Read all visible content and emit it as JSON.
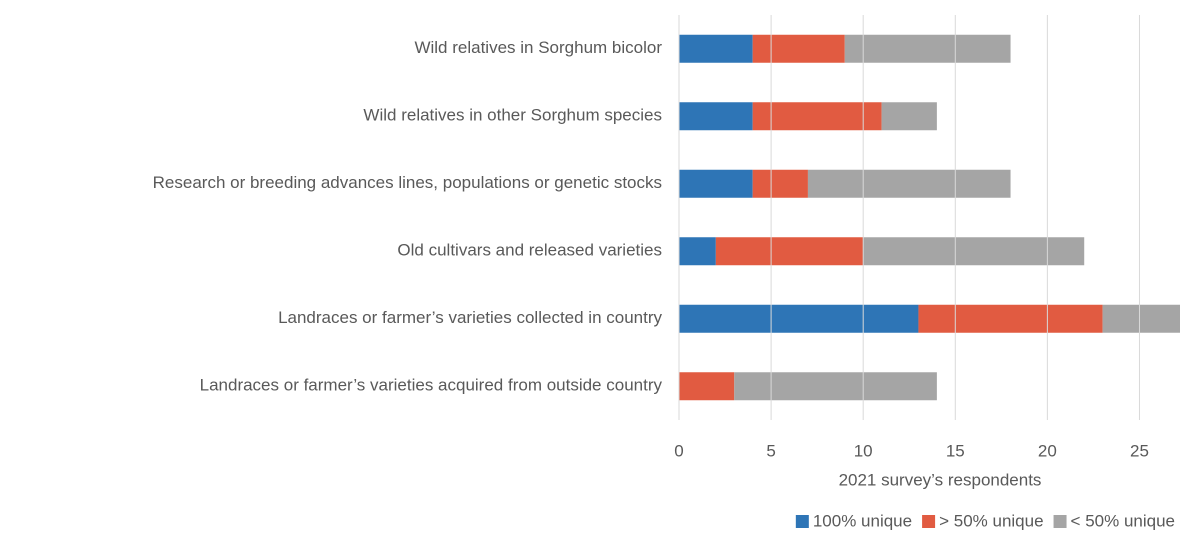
{
  "chart_data": {
    "type": "stacked-barh",
    "xlabel": "2021 survey’s respondents",
    "categories": [
      "Wild relatives in Sorghum bicolor",
      "Wild relatives in other Sorghum species",
      "Research or breeding advances lines, populations or genetic stocks",
      "Old cultivars and released varieties",
      "Landraces or farmer’s varieties collected in country",
      "Landraces or farmer’s varieties acquired from outside country"
    ],
    "series": [
      {
        "name": "100% unique",
        "color": "#2e75b6",
        "values": [
          4,
          4,
          4,
          2,
          13,
          0
        ]
      },
      {
        "name": "> 50% unique",
        "color": "#e15b41",
        "values": [
          5,
          7,
          3,
          8,
          10,
          3
        ]
      },
      {
        "name": "< 50% unique",
        "color": "#a5a5a5",
        "values": [
          9,
          3,
          11,
          12,
          5,
          11
        ]
      }
    ],
    "xlim": [
      0,
      27.2
    ],
    "xticks": [
      0,
      5,
      10,
      15,
      20,
      25
    ],
    "grid": true,
    "legend": "bottom-right"
  }
}
